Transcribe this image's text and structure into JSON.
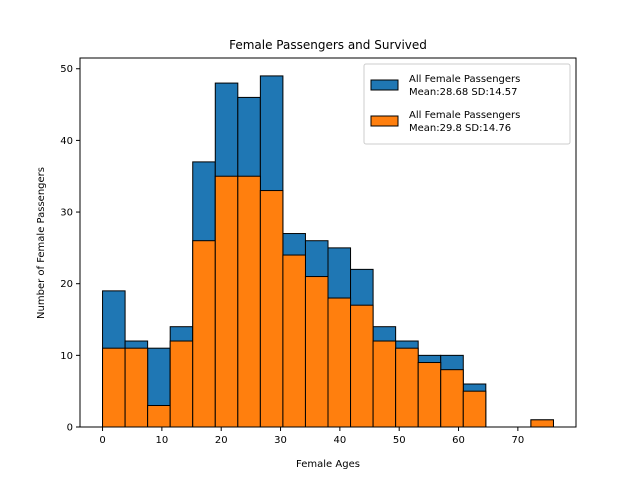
{
  "chart_data": {
    "type": "bar",
    "title": "Female Passengers and Survived",
    "xlabel": "Female Ages",
    "ylabel": "Number of Female Passengers",
    "xlim": [
      -3.8,
      79.8
    ],
    "ylim": [
      0,
      51.5
    ],
    "xticks": [
      0,
      10,
      20,
      30,
      40,
      50,
      60,
      70
    ],
    "yticks": [
      0,
      10,
      20,
      30,
      40,
      50
    ],
    "bin_edges": [
      0.0,
      3.8,
      7.6,
      11.4,
      15.2,
      19.0,
      22.8,
      26.6,
      30.4,
      34.2,
      38.0,
      41.8,
      45.6,
      49.4,
      53.2,
      57.0,
      60.8,
      64.6,
      68.4,
      72.2,
      76.0
    ],
    "legend_position": "top-right",
    "grid": false,
    "series": [
      {
        "name": "All Female Passengers",
        "stat": "Mean:28.68 SD:14.57",
        "color": "#1f77b4",
        "values": [
          19,
          12,
          11,
          14,
          37,
          48,
          46,
          49,
          27,
          26,
          25,
          22,
          14,
          12,
          10,
          10,
          6,
          0,
          0,
          1
        ]
      },
      {
        "name": "All Female Passengers",
        "stat": "Mean:29.8 SD:14.76",
        "color": "#ff7f0e",
        "values": [
          11,
          11,
          3,
          12,
          26,
          35,
          35,
          33,
          24,
          21,
          18,
          17,
          12,
          11,
          9,
          8,
          5,
          0,
          0,
          1
        ]
      }
    ]
  }
}
